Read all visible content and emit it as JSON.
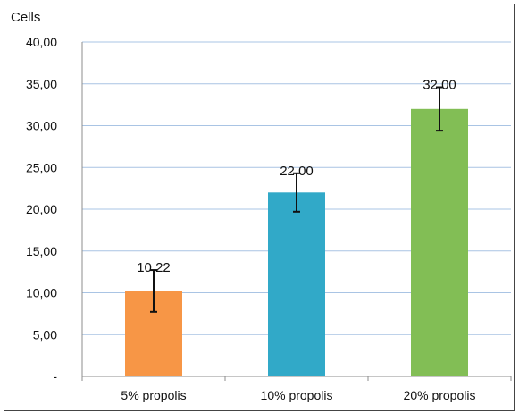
{
  "chart_data": {
    "type": "bar",
    "ylabel": "Cells",
    "categories": [
      "5% propolis",
      "10% propolis",
      "20% propolis"
    ],
    "values": [
      10.22,
      22.0,
      32.0
    ],
    "value_labels": [
      "10,22",
      "22,00",
      "32,00"
    ],
    "error": [
      2.5,
      2.3,
      2.6
    ],
    "colors": [
      "#F79646",
      "#31A9C8",
      "#82BE55"
    ],
    "ylim": [
      0,
      40
    ],
    "yticks": [
      0,
      5,
      10,
      15,
      20,
      25,
      30,
      35,
      40
    ],
    "ytick_labels": [
      "-",
      "5,00",
      "10,00",
      "15,00",
      "20,00",
      "25,00",
      "30,00",
      "35,00",
      "40,00"
    ],
    "grid": true,
    "legend": "none"
  }
}
